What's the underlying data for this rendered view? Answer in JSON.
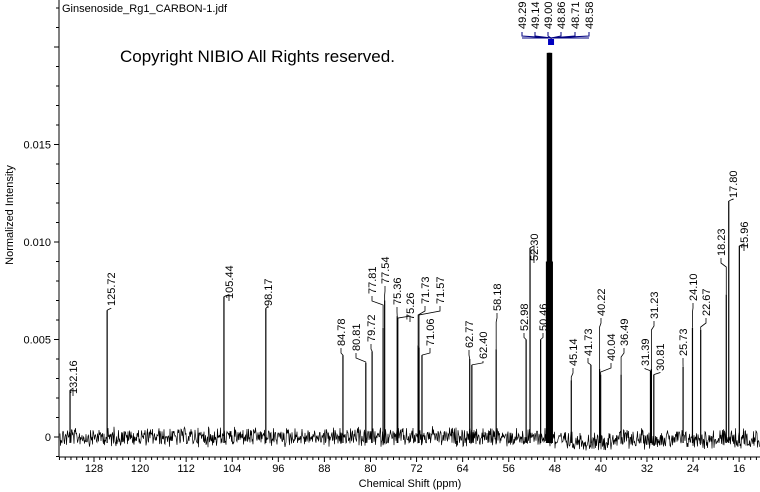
{
  "chart_data": {
    "type": "line",
    "title": "Ginsenoside_Rg1_CARBON-1.jdf",
    "watermark": "Copyright NIBIO All Rights reserved.",
    "xlabel": "Chemical Shift (ppm)",
    "ylabel": "Normalized Intensity",
    "xlim": [
      134.1,
      12.4
    ],
    "ylim": [
      -0.001,
      0.0224
    ],
    "x_reversed": true,
    "grid": false,
    "x_ticks": [
      "128",
      "120",
      "112",
      "104",
      "96",
      "88",
      "80",
      "72",
      "64",
      "56",
      "48",
      "40",
      "32",
      "24",
      "16"
    ],
    "y_ticks": [
      "0",
      "0.005",
      "0.010",
      "0.015"
    ],
    "colors": {
      "spectrum": "#000000",
      "label_leader": "#000080",
      "cluster_marker": "#0000c0"
    },
    "peaks": [
      {
        "ppm": 132.16,
        "label": "132.16",
        "intensity": 0.0024
      },
      {
        "ppm": 125.72,
        "label": "125.72",
        "intensity": 0.0065
      },
      {
        "ppm": 105.44,
        "label": "105.44",
        "intensity": 0.0072
      },
      {
        "ppm": 98.17,
        "label": "98.17",
        "intensity": 0.0066
      },
      {
        "ppm": 84.78,
        "label": "84.78",
        "intensity": 0.0042
      },
      {
        "ppm": 80.81,
        "label": "80.81",
        "intensity": 0.0038
      },
      {
        "ppm": 79.72,
        "label": "79.72",
        "intensity": 0.0044
      },
      {
        "ppm": 77.81,
        "label": "77.81",
        "intensity": 0.0056
      },
      {
        "ppm": 77.54,
        "label": "77.54",
        "intensity": 0.007
      },
      {
        "ppm": 75.36,
        "label": "75.36",
        "intensity": 0.0062
      },
      {
        "ppm": 75.26,
        "label": "75.26",
        "intensity": 0.0061
      },
      {
        "ppm": 71.73,
        "label": "71.73",
        "intensity": 0.0047
      },
      {
        "ppm": 71.57,
        "label": "71.57",
        "intensity": 0.0046
      },
      {
        "ppm": 71.06,
        "label": "71.06",
        "intensity": 0.0042
      },
      {
        "ppm": 62.77,
        "label": "62.77",
        "intensity": 0.004
      },
      {
        "ppm": 62.4,
        "label": "62.40",
        "intensity": 0.0037
      },
      {
        "ppm": 58.18,
        "label": "58.18",
        "intensity": 0.0045
      },
      {
        "ppm": 52.98,
        "label": "52.98",
        "intensity": 0.005
      },
      {
        "ppm": 52.3,
        "label": "52.30",
        "intensity": 0.0097
      },
      {
        "ppm": 50.46,
        "label": "50.46",
        "intensity": 0.005
      },
      {
        "ppm": 49.29,
        "label": "49.29",
        "intensity": 0.009
      },
      {
        "ppm": 49.14,
        "label": "49.14",
        "intensity": 0.0197
      },
      {
        "ppm": 49.0,
        "label": "49.00",
        "intensity": 0.0197
      },
      {
        "ppm": 48.86,
        "label": "48.86",
        "intensity": 0.0197
      },
      {
        "ppm": 48.71,
        "label": "48.71",
        "intensity": 0.0197
      },
      {
        "ppm": 48.58,
        "label": "48.58",
        "intensity": 0.009
      },
      {
        "ppm": 45.14,
        "label": "45.14",
        "intensity": 0.0029
      },
      {
        "ppm": 41.73,
        "label": "41.73",
        "intensity": 0.0037
      },
      {
        "ppm": 40.22,
        "label": "40.22",
        "intensity": 0.0035
      },
      {
        "ppm": 40.04,
        "label": "40.04",
        "intensity": 0.0032
      },
      {
        "ppm": 36.49,
        "label": "36.49",
        "intensity": 0.0032
      },
      {
        "ppm": 31.39,
        "label": "31.39",
        "intensity": 0.0034
      },
      {
        "ppm": 31.23,
        "label": "31.23",
        "intensity": 0.0035
      },
      {
        "ppm": 30.81,
        "label": "30.81",
        "intensity": 0.0032
      },
      {
        "ppm": 25.73,
        "label": "25.73",
        "intensity": 0.0036
      },
      {
        "ppm": 24.1,
        "label": "24.10",
        "intensity": 0.0056
      },
      {
        "ppm": 22.67,
        "label": "22.67",
        "intensity": 0.0055
      },
      {
        "ppm": 18.23,
        "label": "18.23",
        "intensity": 0.0073
      },
      {
        "ppm": 17.8,
        "label": "17.80",
        "intensity": 0.0121
      },
      {
        "ppm": 15.96,
        "label": "15.96",
        "intensity": 0.0098
      }
    ]
  }
}
